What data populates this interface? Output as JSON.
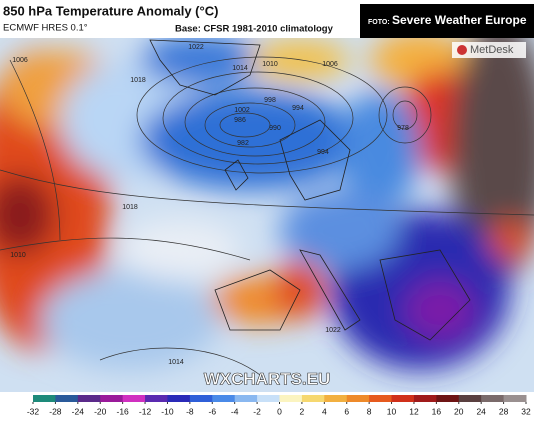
{
  "header": {
    "title": "850 hPa Temperature Anomaly (°C)",
    "model": "ECMWF HRES 0.1°",
    "base": "Base: CFSR 1981-2010 climatology"
  },
  "credit": {
    "prefix": "FOTO:",
    "source": "Severe Weather Europe"
  },
  "logo": "MetDesk",
  "watermark": "WXCHARTS.EU",
  "isobar_labels": [
    "1022",
    "1018",
    "1014",
    "1010",
    "1006",
    "1002",
    "998",
    "994",
    "990",
    "986",
    "982",
    "994",
    "978",
    "1006",
    "1018",
    "1010",
    "1014",
    "1022"
  ],
  "colorbar": {
    "ticks": [
      -32,
      -28,
      -24,
      -20,
      -16,
      -12,
      -10,
      -8,
      -6,
      -4,
      -2,
      0,
      2,
      4,
      6,
      8,
      10,
      12,
      16,
      20,
      24,
      28,
      32
    ]
  }
}
